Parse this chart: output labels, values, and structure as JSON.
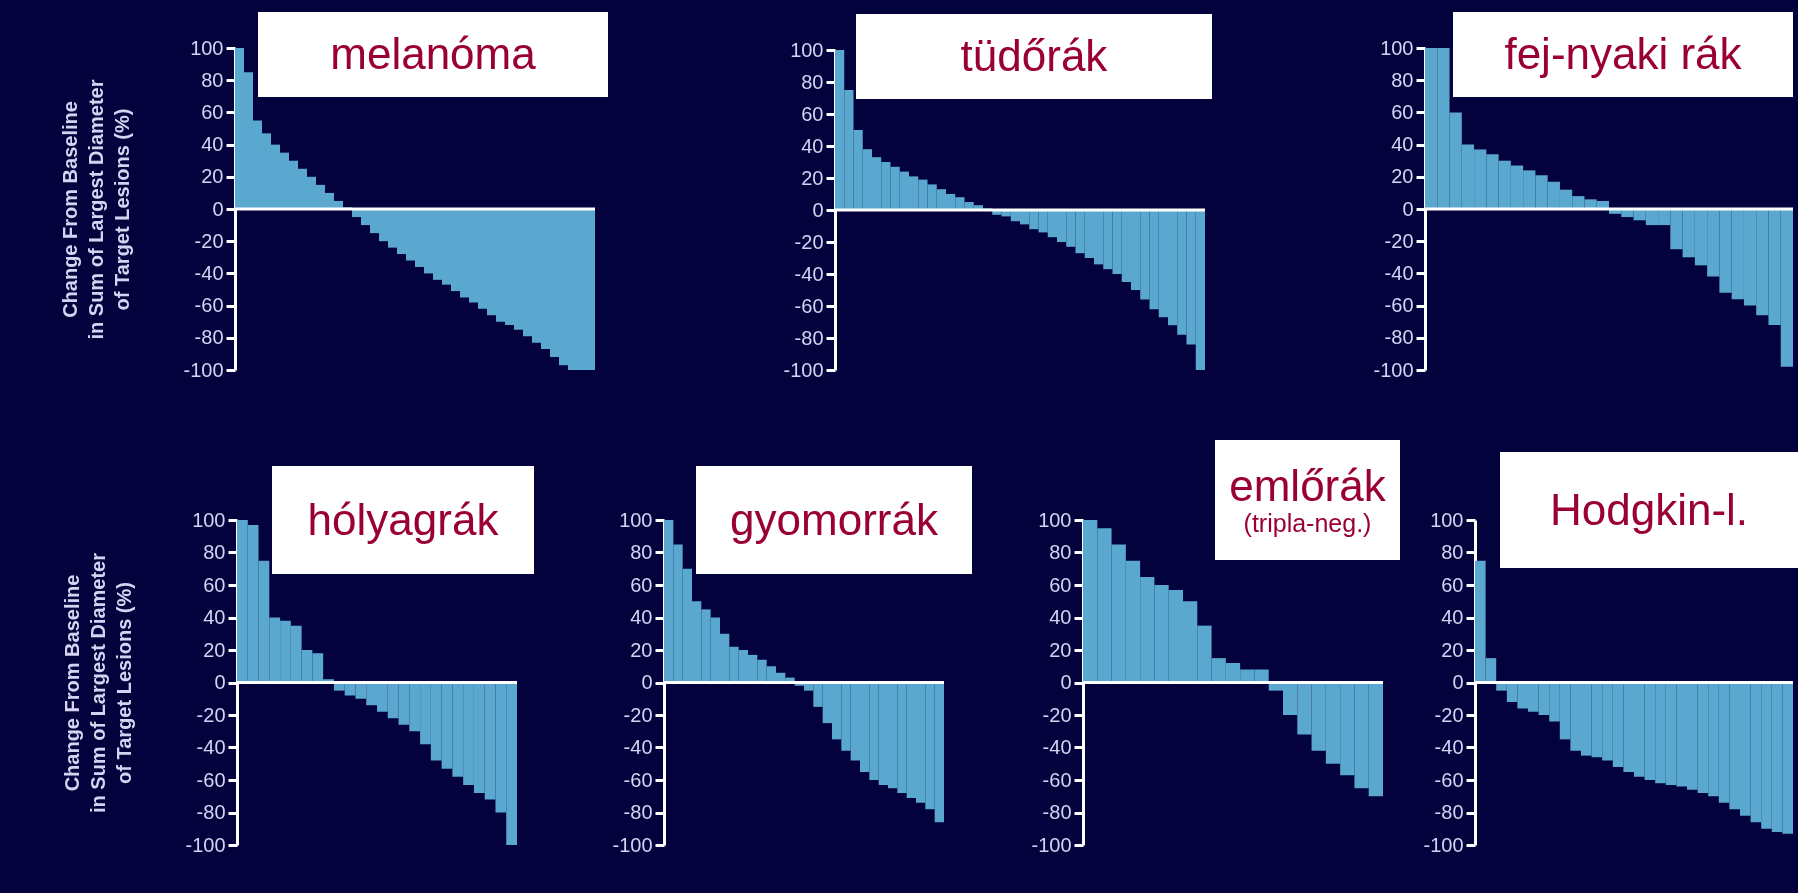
{
  "chart_data": [
    {
      "type": "bar",
      "title": "melanóma",
      "ylabel": "Change From Baseline\nin Sum of Largest Diameter\nof Target Lesions (%)",
      "color": "#5aa8cf",
      "ylim": [
        -100,
        100
      ],
      "yticks": [
        -100,
        -80,
        -60,
        -40,
        -20,
        0,
        20,
        40,
        60,
        80,
        100
      ],
      "tick_labels": "y",
      "ref_lines": [
        {
          "axis": "y",
          "value": 0,
          "color": "#ffffff"
        }
      ],
      "categories": [
        null,
        null,
        null,
        null,
        null,
        null,
        null,
        null,
        null,
        null,
        null,
        null,
        null,
        null,
        null,
        null,
        null,
        null,
        null,
        null,
        null,
        null,
        null,
        null,
        null,
        null,
        null,
        null,
        null,
        null,
        null,
        null,
        null,
        null,
        null,
        null,
        null,
        null,
        null,
        null
      ],
      "values": [
        100,
        85,
        55,
        47,
        40,
        35,
        30,
        25,
        20,
        15,
        10,
        5,
        1,
        -5,
        -10,
        -15,
        -20,
        -24,
        -28,
        -32,
        -36,
        -40,
        -44,
        -47,
        -51,
        -55,
        -58,
        -62,
        -66,
        -70,
        -72,
        -75,
        -79,
        -83,
        -87,
        -92,
        -97,
        -100,
        -100,
        -100
      ]
    },
    {
      "type": "bar",
      "title": "tüdőrák",
      "color": "#5aa8cf",
      "ylim": [
        -100,
        100
      ],
      "yticks": [
        -100,
        -80,
        -60,
        -40,
        -20,
        0,
        20,
        40,
        60,
        80,
        100
      ],
      "tick_labels": "y",
      "ref_lines": [
        {
          "axis": "y",
          "value": 0,
          "color": "#ffffff"
        }
      ],
      "categories": [
        null,
        null,
        null,
        null,
        null,
        null,
        null,
        null,
        null,
        null,
        null,
        null,
        null,
        null,
        null,
        null,
        null,
        null,
        null,
        null,
        null,
        null,
        null,
        null,
        null,
        null,
        null,
        null,
        null,
        null,
        null,
        null,
        null,
        null,
        null,
        null,
        null,
        null,
        null,
        null
      ],
      "values": [
        100,
        75,
        50,
        38,
        33,
        30,
        27,
        24,
        21,
        19,
        16,
        13,
        10,
        8,
        5,
        3,
        1,
        -3,
        -4,
        -7,
        -9,
        -12,
        -14,
        -17,
        -20,
        -23,
        -27,
        -30,
        -34,
        -37,
        -40,
        -45,
        -50,
        -56,
        -62,
        -67,
        -72,
        -78,
        -84,
        -100
      ]
    },
    {
      "type": "bar",
      "title": "fej-nyaki rák",
      "color": "#5aa8cf",
      "ylim": [
        -100,
        100
      ],
      "yticks": [
        -100,
        -80,
        -60,
        -40,
        -20,
        0,
        20,
        40,
        60,
        80,
        100
      ],
      "tick_labels": "y",
      "ref_lines": [
        {
          "axis": "y",
          "value": 0,
          "color": "#ffffff"
        }
      ],
      "categories": [
        null,
        null,
        null,
        null,
        null,
        null,
        null,
        null,
        null,
        null,
        null,
        null,
        null,
        null,
        null,
        null,
        null,
        null,
        null,
        null,
        null,
        null,
        null,
        null,
        null,
        null,
        null,
        null,
        null,
        null
      ],
      "values": [
        100,
        100,
        60,
        40,
        37,
        34,
        30,
        27,
        24,
        21,
        17,
        12,
        8,
        6,
        5,
        -3,
        -5,
        -7,
        -10,
        -10,
        -25,
        -30,
        -35,
        -42,
        -52,
        -56,
        -60,
        -66,
        -72,
        -98
      ]
    },
    {
      "type": "bar",
      "title": "hólyagrák",
      "ylabel": "Change From Baseline\nin Sum of Largest Diameter\nof Target Lesions (%)",
      "color": "#5aa8cf",
      "ylim": [
        -100,
        100
      ],
      "yticks": [
        -100,
        -80,
        -60,
        -40,
        -20,
        0,
        20,
        40,
        60,
        80,
        100
      ],
      "tick_labels": "y",
      "ref_lines": [
        {
          "axis": "y",
          "value": 0,
          "color": "#ffffff"
        }
      ],
      "categories": [
        null,
        null,
        null,
        null,
        null,
        null,
        null,
        null,
        null,
        null,
        null,
        null,
        null,
        null,
        null,
        null,
        null,
        null,
        null,
        null,
        null,
        null,
        null,
        null,
        null,
        null
      ],
      "values": [
        100,
        97,
        75,
        40,
        38,
        35,
        20,
        18,
        2,
        -5,
        -8,
        -10,
        -14,
        -18,
        -22,
        -26,
        -30,
        -38,
        -48,
        -53,
        -58,
        -63,
        -68,
        -72,
        -80,
        -100
      ]
    },
    {
      "type": "bar",
      "title": "gyomorrák",
      "color": "#5aa8cf",
      "ylim": [
        -100,
        100
      ],
      "yticks": [
        -100,
        -80,
        -60,
        -40,
        -20,
        0,
        20,
        40,
        60,
        80,
        100
      ],
      "tick_labels": "y",
      "ref_lines": [
        {
          "axis": "y",
          "value": 0,
          "color": "#ffffff"
        }
      ],
      "categories": [
        null,
        null,
        null,
        null,
        null,
        null,
        null,
        null,
        null,
        null,
        null,
        null,
        null,
        null,
        null,
        null,
        null,
        null,
        null,
        null,
        null,
        null,
        null,
        null,
        null,
        null,
        null,
        null,
        null,
        null
      ],
      "values": [
        100,
        85,
        70,
        50,
        45,
        40,
        30,
        22,
        20,
        17,
        14,
        10,
        6,
        3,
        -2,
        -5,
        -15,
        -25,
        -35,
        -42,
        -48,
        -55,
        -60,
        -63,
        -65,
        -68,
        -71,
        -74,
        -78,
        -86
      ]
    },
    {
      "type": "bar",
      "title": "emlőrák",
      "subtitle": "(tripla-neg.)",
      "color": "#5aa8cf",
      "ylim": [
        -100,
        100
      ],
      "yticks": [
        -100,
        -80,
        -60,
        -40,
        -20,
        0,
        20,
        40,
        60,
        80,
        100
      ],
      "tick_labels": "y",
      "ref_lines": [
        {
          "axis": "y",
          "value": 0,
          "color": "#ffffff"
        }
      ],
      "categories": [
        null,
        null,
        null,
        null,
        null,
        null,
        null,
        null,
        null,
        null,
        null,
        null,
        null,
        null,
        null,
        null,
        null,
        null,
        null,
        null,
        null
      ],
      "values": [
        100,
        95,
        85,
        75,
        65,
        60,
        57,
        50,
        35,
        15,
        12,
        8,
        8,
        -5,
        -20,
        -32,
        -42,
        -50,
        -57,
        -65,
        -70
      ]
    },
    {
      "type": "bar",
      "title": "Hodgkin-l.",
      "color": "#5aa8cf",
      "ylim": [
        -100,
        100
      ],
      "yticks": [
        -100,
        -80,
        -60,
        -40,
        -20,
        0,
        20,
        40,
        60,
        80,
        100
      ],
      "tick_labels": "y",
      "ref_lines": [
        {
          "axis": "y",
          "value": 0,
          "color": "#ffffff"
        }
      ],
      "categories": [
        null,
        null,
        null,
        null,
        null,
        null,
        null,
        null,
        null,
        null,
        null,
        null,
        null,
        null,
        null,
        null,
        null,
        null,
        null,
        null,
        null,
        null,
        null,
        null,
        null,
        null,
        null,
        null,
        null,
        null
      ],
      "values": [
        75,
        15,
        -5,
        -12,
        -16,
        -18,
        -20,
        -24,
        -35,
        -42,
        -45,
        -46,
        -48,
        -52,
        -55,
        -58,
        -60,
        -62,
        -63,
        -64,
        -66,
        -68,
        -70,
        -74,
        -78,
        -82,
        -86,
        -90,
        -92,
        -93
      ]
    }
  ]
}
